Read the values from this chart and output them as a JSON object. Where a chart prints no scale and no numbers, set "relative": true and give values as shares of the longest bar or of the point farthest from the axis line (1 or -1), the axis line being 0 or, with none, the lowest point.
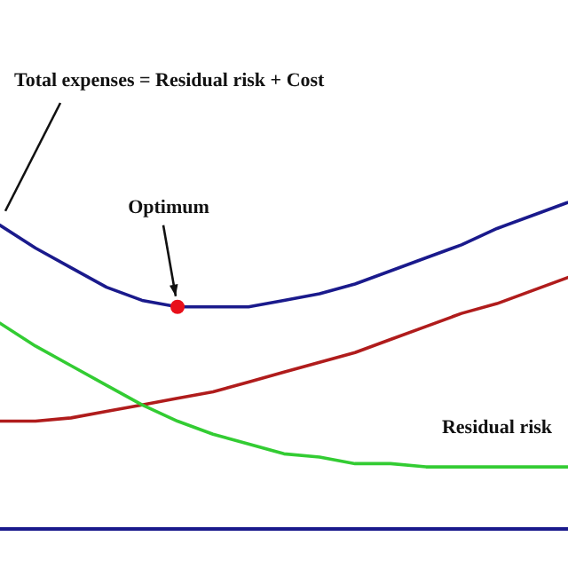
{
  "chart_data": {
    "type": "line",
    "relative": true,
    "categories": [
      null,
      null,
      null,
      null,
      null,
      null,
      null,
      null,
      null,
      null,
      null,
      null,
      null,
      null,
      null,
      null,
      null
    ],
    "series": [
      {
        "name": "Total expenses = Residual risk + Cost",
        "color": "#1a1a8c",
        "values": [
          0.93,
          0.86,
          0.8,
          0.74,
          0.7,
          0.68,
          0.68,
          0.68,
          0.7,
          0.72,
          0.75,
          0.79,
          0.83,
          0.87,
          0.92,
          0.96,
          1
        ]
      },
      {
        "color": "#b01c1c",
        "values": [
          0.33,
          0.33,
          0.34,
          0.36,
          0.38,
          0.4,
          0.42,
          0.45,
          0.48,
          0.51,
          0.54,
          0.58,
          0.62,
          0.66,
          0.69,
          0.73,
          0.77
        ]
      },
      {
        "name": "Residual risk",
        "color": "#33cc33",
        "values": [
          0.63,
          0.56,
          0.5,
          0.44,
          0.38,
          0.33,
          0.29,
          0.26,
          0.23,
          0.22,
          0.2,
          0.2,
          0.19,
          0.19,
          0.19,
          0.19,
          0.19
        ]
      }
    ],
    "annotations": [
      "Optimum"
    ],
    "marker": "none",
    "grid": false,
    "legend": false
  }
}
